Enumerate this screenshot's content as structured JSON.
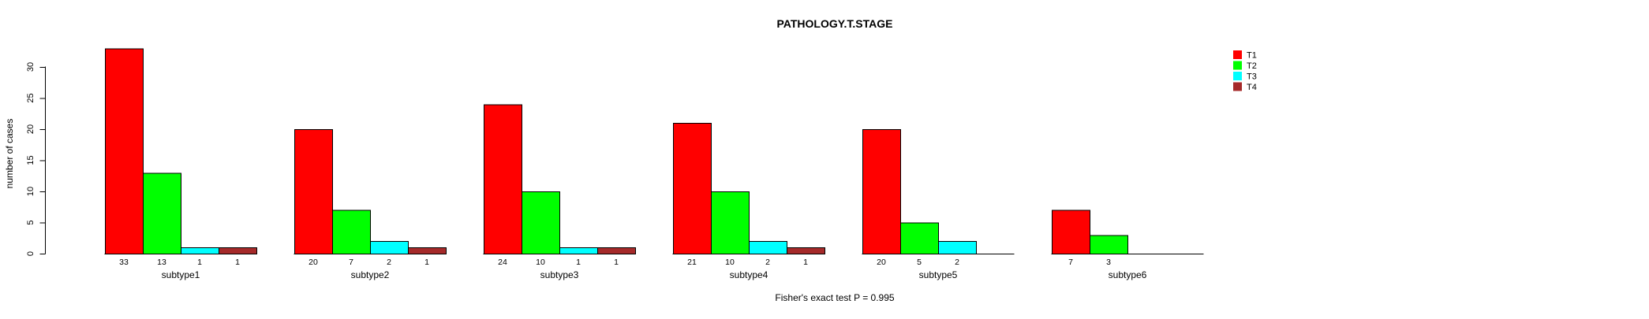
{
  "chart_data": {
    "type": "bar",
    "title": "PATHOLOGY.T.STAGE",
    "ylabel": "number of cases",
    "xlabel": "",
    "footer_annotation": "Fisher's exact test P = 0.995",
    "categories": [
      "subtype1",
      "subtype2",
      "subtype3",
      "subtype4",
      "subtype5",
      "subtype6"
    ],
    "series": [
      {
        "name": "T1",
        "color": "#ff0000",
        "values": [
          33,
          20,
          24,
          21,
          20,
          7
        ]
      },
      {
        "name": "T2",
        "color": "#00ff00",
        "values": [
          13,
          7,
          10,
          10,
          5,
          3
        ]
      },
      {
        "name": "T3",
        "color": "#00ffff",
        "values": [
          1,
          2,
          1,
          2,
          2,
          0
        ]
      },
      {
        "name": "T4",
        "color": "#a52a2a",
        "values": [
          1,
          1,
          1,
          1,
          0,
          0
        ]
      }
    ],
    "value_labels_under_bars": true,
    "zero_values_unlabeled": true,
    "yticks": [
      0,
      5,
      10,
      15,
      20,
      25,
      30
    ],
    "ylim": [
      0,
      33
    ],
    "grid": false,
    "legend_position": "right-inset",
    "background_color": "#ffffff",
    "text_color": "#000000"
  }
}
